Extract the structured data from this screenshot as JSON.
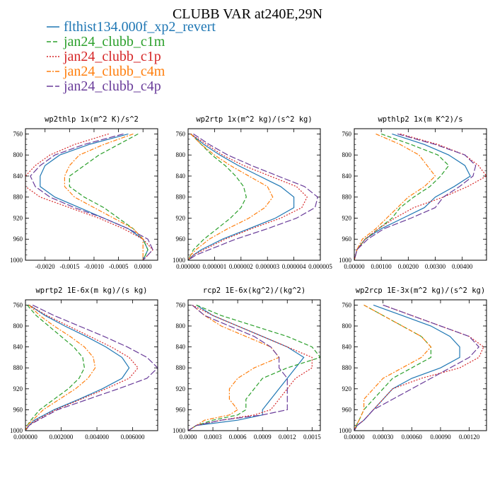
{
  "figure": {
    "title": "CLUBB VAR at240E,29N",
    "legend": [
      {
        "label": "flthist134.000f_xp2_revert",
        "color": "#1f77b4",
        "dash": "solid"
      },
      {
        "label": "jan24_clubb_c1m",
        "color": "#2ca02c",
        "dash": "dashed"
      },
      {
        "label": "jan24_clubb_c1p",
        "color": "#d62728",
        "dash": "dotted"
      },
      {
        "label": "jan24_clubb_c4m",
        "color": "#ff7f0e",
        "dash": "dashdot"
      },
      {
        "label": "jan24_clubb_c4p",
        "color": "#6a3d9a",
        "dash": "longdash"
      }
    ]
  },
  "chart_data": [
    {
      "type": "line",
      "title": "wp2thlp  1x(m^2 K)/s^2",
      "xlim": [
        -0.0024,
        0.0003
      ],
      "ylim": [
        1000,
        750
      ],
      "xticks": [
        -0.002,
        -0.0015,
        -0.001,
        -0.0005,
        0.0
      ],
      "xtick_labels": [
        "-0.0020",
        "-0.0015",
        "-0.0010",
        "-0.0005",
        "0.0000"
      ],
      "yticks": [
        760,
        800,
        840,
        880,
        920,
        960,
        1000
      ],
      "ytick_labels": [
        "760",
        "800",
        "840",
        "880",
        "920",
        "960",
        "1000"
      ],
      "y": [
        760,
        780,
        800,
        820,
        840,
        860,
        880,
        900,
        920,
        940,
        960,
        980,
        990,
        1000
      ],
      "series": [
        {
          "name": "flthist134.000f_xp2_revert",
          "values": [
            -0.0003,
            -0.0011,
            -0.0017,
            -0.002,
            -0.0021,
            -0.0021,
            -0.0018,
            -0.0013,
            -0.0008,
            -0.0003,
            0.0,
            0.0001,
            5e-05,
            0.0
          ]
        },
        {
          "name": "jan24_clubb_c1m",
          "values": [
            -0.0001,
            -0.0005,
            -0.0009,
            -0.0012,
            -0.0015,
            -0.0015,
            -0.0012,
            -0.0008,
            -0.0005,
            -0.0002,
            0.0,
            0.0001,
            5e-05,
            0.0
          ]
        },
        {
          "name": "jan24_clubb_c1p",
          "values": [
            -0.0007,
            -0.0014,
            -0.0019,
            -0.0022,
            -0.0024,
            -0.0024,
            -0.0021,
            -0.0015,
            -0.0009,
            -0.0004,
            0.0,
            0.0002,
            0.0001,
            0.0
          ]
        },
        {
          "name": "jan24_clubb_c4m",
          "values": [
            -0.0002,
            -0.0008,
            -0.0013,
            -0.0015,
            -0.0016,
            -0.0016,
            -0.0014,
            -0.001,
            -0.0006,
            -0.0002,
            0.0,
            0.0,
            0.0,
            0.0
          ]
        },
        {
          "name": "jan24_clubb_c4p",
          "values": [
            -0.0004,
            -0.0012,
            -0.0018,
            -0.0021,
            -0.0023,
            -0.0022,
            -0.0019,
            -0.0014,
            -0.0008,
            -0.0003,
            0.0001,
            0.0002,
            0.0001,
            0.0
          ]
        }
      ]
    },
    {
      "type": "line",
      "title": "wp2rtp  1x(m^2 kg)/(s^2 kg)",
      "xlim": [
        0.0,
        5e-06
      ],
      "ylim": [
        1000,
        750
      ],
      "xticks": [
        0.0,
        1e-06,
        2e-06,
        3e-06,
        4e-06,
        5e-06
      ],
      "xtick_labels": [
        "0.000000",
        "0.000001",
        "0.000002",
        "0.000003",
        "0.000004",
        "0.000005"
      ],
      "yticks": [
        760,
        800,
        840,
        880,
        920,
        960,
        1000
      ],
      "ytick_labels": [
        "760",
        "800",
        "840",
        "880",
        "920",
        "960",
        "1000"
      ],
      "y": [
        760,
        780,
        800,
        820,
        840,
        860,
        880,
        900,
        920,
        940,
        960,
        980,
        990,
        1000
      ],
      "series": [
        {
          "name": "flthist134.000f_xp2_revert",
          "values": [
            1e-07,
            6e-07,
            1.2e-06,
            1.9e-06,
            2.7e-06,
            3.5e-06,
            4e-06,
            4e-06,
            3.3e-06,
            2.3e-06,
            1.3e-06,
            5e-07,
            2e-07,
            0.0
          ]
        },
        {
          "name": "jan24_clubb_c1m",
          "values": [
            1e-07,
            5e-07,
            9e-07,
            1.4e-06,
            1.8e-06,
            2.1e-06,
            2.2e-06,
            2e-06,
            1.6e-06,
            1.1e-06,
            6e-07,
            2e-07,
            1e-07,
            0.0
          ]
        },
        {
          "name": "jan24_clubb_c1p",
          "values": [
            1e-07,
            7e-07,
            1.3e-06,
            2.1e-06,
            3.1e-06,
            4.1e-06,
            4.5e-06,
            4.3e-06,
            3.5e-06,
            2.4e-06,
            1.4e-06,
            6e-07,
            2e-07,
            0.0
          ]
        },
        {
          "name": "jan24_clubb_c4m",
          "values": [
            1e-07,
            5e-07,
            1e-06,
            1.6e-06,
            2.3e-06,
            3e-06,
            3.2e-06,
            2.9e-06,
            2.3e-06,
            1.5e-06,
            8e-07,
            3e-07,
            1e-07,
            0.0
          ]
        },
        {
          "name": "jan24_clubb_c4p",
          "values": [
            2e-07,
            8e-07,
            1.5e-06,
            2.4e-06,
            3.4e-06,
            4.4e-06,
            4.9e-06,
            4.8e-06,
            4.1e-06,
            3e-06,
            1.8e-06,
            8e-07,
            3e-07,
            0.0
          ]
        }
      ]
    },
    {
      "type": "line",
      "title": "wpthlp2  1x(m K^2)/s",
      "xlim": [
        0.0,
        0.0049
      ],
      "ylim": [
        1000,
        750
      ],
      "xticks": [
        0.0,
        0.001,
        0.002,
        0.003,
        0.004
      ],
      "xtick_labels": [
        "0.00000",
        "0.00100",
        "0.00200",
        "0.00300",
        "0.00400"
      ],
      "yticks": [
        760,
        800,
        840,
        880,
        920,
        960,
        1000
      ],
      "ytick_labels": [
        "760",
        "800",
        "840",
        "880",
        "920",
        "960",
        "1000"
      ],
      "y": [
        760,
        780,
        800,
        820,
        840,
        860,
        880,
        900,
        920,
        940,
        960,
        980,
        990,
        1000
      ],
      "series": [
        {
          "name": "flthist134.000f_xp2_revert",
          "values": [
            0.0014,
            0.0026,
            0.0035,
            0.0041,
            0.0043,
            0.0037,
            0.003,
            0.0026,
            0.0018,
            0.001,
            0.0004,
            0.0001,
            5e-05,
            0.0
          ]
        },
        {
          "name": "jan24_clubb_c1m",
          "values": [
            0.001,
            0.0021,
            0.0031,
            0.0035,
            0.0032,
            0.0028,
            0.0022,
            0.0017,
            0.0014,
            0.0009,
            0.0004,
            0.0001,
            5e-05,
            0.0
          ]
        },
        {
          "name": "jan24_clubb_c1p",
          "values": [
            0.0017,
            0.0031,
            0.0041,
            0.0046,
            0.0049,
            0.0042,
            0.0033,
            0.0022,
            0.0015,
            0.0009,
            0.0004,
            0.0001,
            5e-05,
            0.0
          ]
        },
        {
          "name": "jan24_clubb_c4m",
          "values": [
            0.0008,
            0.0017,
            0.0024,
            0.0027,
            0.003,
            0.0026,
            0.002,
            0.0016,
            0.0012,
            0.0008,
            0.0003,
            0.0001,
            5e-05,
            0.0
          ]
        },
        {
          "name": "jan24_clubb_c4p",
          "values": [
            0.0016,
            0.003,
            0.0041,
            0.0045,
            0.0044,
            0.0039,
            0.0033,
            0.003,
            0.0021,
            0.0011,
            0.0005,
            0.0001,
            5e-05,
            0.0
          ]
        }
      ]
    },
    {
      "type": "line",
      "title": "wprtp2  1E-6x(m kg)/(s kg)",
      "xlim": [
        0.0,
        0.0074
      ],
      "ylim": [
        1000,
        750
      ],
      "xticks": [
        0.0,
        0.002,
        0.004,
        0.006
      ],
      "xtick_labels": [
        "0.000000",
        "0.002000",
        "0.004000",
        "0.006000"
      ],
      "yticks": [
        760,
        800,
        840,
        880,
        920,
        960,
        1000
      ],
      "ytick_labels": [
        "760",
        "800",
        "840",
        "880",
        "920",
        "960",
        "1000"
      ],
      "y": [
        760,
        780,
        800,
        820,
        840,
        860,
        880,
        900,
        920,
        940,
        960,
        980,
        990,
        1000
      ],
      "series": [
        {
          "name": "flthist134.000f_xp2_revert",
          "values": [
            0.0002,
            0.0011,
            0.0022,
            0.0034,
            0.0045,
            0.0054,
            0.0058,
            0.0054,
            0.0043,
            0.003,
            0.0016,
            0.0005,
            0.0002,
            0.0
          ]
        },
        {
          "name": "jan24_clubb_c1m",
          "values": [
            0.0001,
            0.0006,
            0.0013,
            0.002,
            0.0027,
            0.0032,
            0.0033,
            0.003,
            0.0024,
            0.0016,
            0.0008,
            0.0003,
            0.0001,
            0.0
          ]
        },
        {
          "name": "jan24_clubb_c1p",
          "values": [
            0.0002,
            0.0012,
            0.0024,
            0.0036,
            0.0048,
            0.0058,
            0.0063,
            0.0058,
            0.0045,
            0.0031,
            0.0017,
            0.0006,
            0.0002,
            0.0
          ]
        },
        {
          "name": "jan24_clubb_c4m",
          "values": [
            0.0002,
            0.0008,
            0.0016,
            0.0025,
            0.0033,
            0.0038,
            0.0039,
            0.0035,
            0.0028,
            0.0019,
            0.001,
            0.0004,
            0.0001,
            0.0
          ]
        },
        {
          "name": "jan24_clubb_c4p",
          "values": [
            0.0004,
            0.0016,
            0.003,
            0.0044,
            0.0057,
            0.0068,
            0.0074,
            0.0068,
            0.0052,
            0.0035,
            0.0018,
            0.0007,
            0.0002,
            0.0
          ]
        }
      ]
    },
    {
      "type": "line",
      "title": "rcp2  1E-6x(kg^2)/(kg^2)",
      "xlim": [
        0.0,
        0.0016
      ],
      "ylim": [
        1000,
        750
      ],
      "xticks": [
        0.0,
        0.0003,
        0.0006,
        0.0009,
        0.0012,
        0.0015
      ],
      "xtick_labels": [
        "0.0000",
        "0.0003",
        "0.0006",
        "0.0009",
        "0.0012",
        "0.0015"
      ],
      "yticks": [
        760,
        800,
        840,
        880,
        920,
        960,
        1000
      ],
      "ytick_labels": [
        "760",
        "800",
        "840",
        "880",
        "920",
        "960",
        "1000"
      ],
      "y": [
        760,
        780,
        800,
        820,
        840,
        860,
        880,
        900,
        920,
        940,
        960,
        970,
        980,
        990,
        1000
      ],
      "series": [
        {
          "name": "flthist134.000f_xp2_revert",
          "values": [
            0.0001,
            0.0003,
            0.0006,
            0.0009,
            0.0012,
            0.0014,
            0.0013,
            0.0012,
            0.0011,
            0.001,
            0.0009,
            0.0009,
            0.0006,
            0.0001,
            0.0
          ]
        },
        {
          "name": "jan24_clubb_c1m",
          "values": [
            0.0001,
            0.0004,
            0.0008,
            0.0012,
            0.0015,
            0.0016,
            0.0012,
            0.0009,
            0.0008,
            0.0007,
            0.0007,
            0.0006,
            0.0003,
            0.0001,
            0.0
          ]
        },
        {
          "name": "jan24_clubb_c1p",
          "values": [
            5e-05,
            0.0003,
            0.0006,
            0.0009,
            0.0012,
            0.0015,
            0.0015,
            0.0013,
            0.0012,
            0.0011,
            0.001,
            0.0008,
            0.0004,
            0.0001,
            0.0
          ]
        },
        {
          "name": "jan24_clubb_c4m",
          "values": [
            5e-05,
            0.0002,
            0.0004,
            0.0007,
            0.001,
            0.0011,
            0.0008,
            0.0006,
            0.0005,
            0.0005,
            0.0006,
            0.0005,
            0.0002,
            0.0001,
            0.0
          ]
        },
        {
          "name": "jan24_clubb_c4p",
          "values": [
            5e-05,
            0.0002,
            0.0005,
            0.0008,
            0.001,
            0.0011,
            0.0011,
            0.0012,
            0.0012,
            0.0012,
            0.0012,
            0.0009,
            0.0004,
            0.0001,
            0.0
          ]
        }
      ]
    },
    {
      "type": "line",
      "title": "wp2rcp  1E-3x(m^2 kg)/(s^2 kg)",
      "xlim": [
        0.0,
        0.00138
      ],
      "ylim": [
        1000,
        750
      ],
      "xticks": [
        0.0,
        0.0003,
        0.0006,
        0.0009,
        0.0012
      ],
      "xtick_labels": [
        "0.00000",
        "0.00030",
        "0.00060",
        "0.00090",
        "0.00120"
      ],
      "yticks": [
        760,
        800,
        840,
        880,
        920,
        960,
        1000
      ],
      "ytick_labels": [
        "760",
        "800",
        "840",
        "880",
        "920",
        "960",
        "1000"
      ],
      "y": [
        760,
        780,
        800,
        820,
        840,
        860,
        880,
        900,
        920,
        940,
        960,
        980,
        990,
        1000
      ],
      "series": [
        {
          "name": "flthist134.000f_xp2_revert",
          "values": [
            0.0002,
            0.0005,
            0.0008,
            0.001,
            0.0011,
            0.0011,
            0.0009,
            0.0006,
            0.0004,
            0.0003,
            0.0002,
            0.0001,
            3e-05,
            0.0
          ]
        },
        {
          "name": "jan24_clubb_c1m",
          "values": [
            0.0001,
            0.0003,
            0.0005,
            0.0007,
            0.0008,
            0.0008,
            0.0006,
            0.0004,
            0.0003,
            0.0002,
            0.0001,
            5e-05,
            2e-05,
            0.0
          ]
        },
        {
          "name": "jan24_clubb_c1p",
          "values": [
            0.0003,
            0.0006,
            0.0009,
            0.0012,
            0.00135,
            0.0013,
            0.0011,
            0.0007,
            0.0004,
            0.0003,
            0.0002,
            0.0001,
            3e-05,
            0.0
          ]
        },
        {
          "name": "jan24_clubb_c4m",
          "values": [
            0.0001,
            0.0003,
            0.0005,
            0.0007,
            0.0008,
            0.0007,
            0.0005,
            0.0003,
            0.0002,
            0.0001,
            0.0001,
            5e-05,
            2e-05,
            0.0
          ]
        },
        {
          "name": "jan24_clubb_c4p",
          "values": [
            0.0003,
            0.0006,
            0.0009,
            0.0012,
            0.0013,
            0.0012,
            0.001,
            0.0008,
            0.0006,
            0.0004,
            0.0002,
            0.0001,
            3e-05,
            0.0
          ]
        }
      ]
    }
  ]
}
